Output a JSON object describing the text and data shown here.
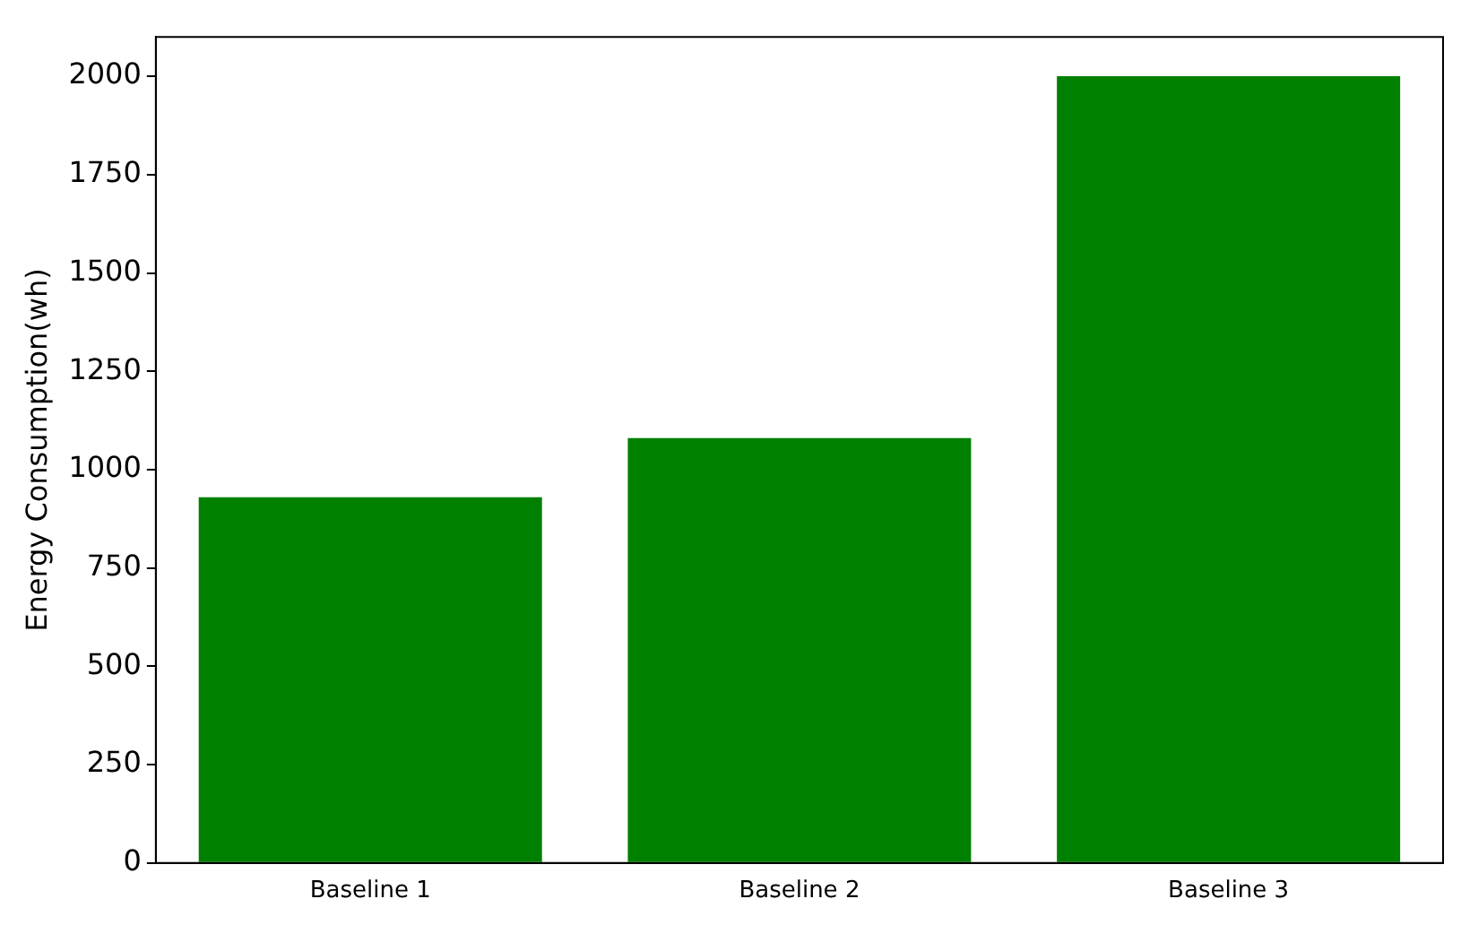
{
  "chart_data": {
    "type": "bar",
    "ylabel": "Energy Consumption(wh)",
    "categories": [
      "Baseline 1",
      "Baseline 2",
      "Baseline 3"
    ],
    "values": [
      930,
      1080,
      2000
    ],
    "color": "#008000",
    "ylim": [
      0,
      2100
    ],
    "yticks": [
      0,
      250,
      500,
      750,
      1000,
      1250,
      1500,
      1750,
      2000
    ],
    "grid": false,
    "legend": false
  }
}
